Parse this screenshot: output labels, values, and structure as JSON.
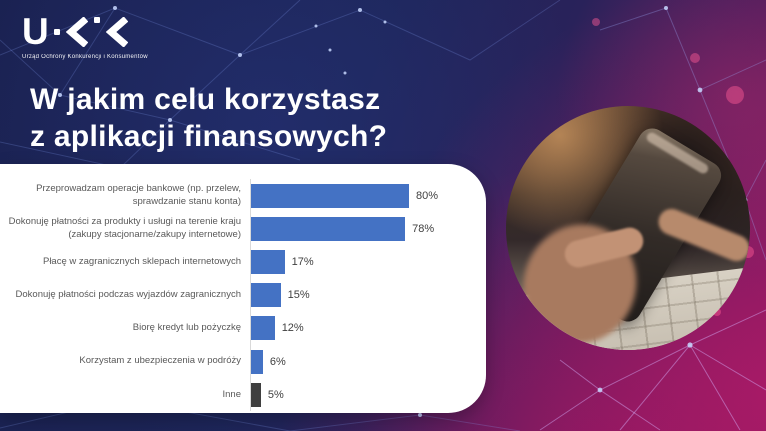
{
  "logo": {
    "letter": "U",
    "org_name": "Urząd Ochrony Konkurencji i Konsumentów"
  },
  "title": {
    "line1": "W jakim celu korzystasz",
    "line2": "z aplikacji finansowych?"
  },
  "chart_data": {
    "type": "bar",
    "orientation": "horizontal",
    "title": "W jakim celu korzystasz z aplikacji finansowych?",
    "categories": [
      "Przeprowadzam operacje bankowe (np. przelew, sprawdzanie stanu konta)",
      "Dokonuję płatności za produkty i usługi na terenie kraju (zakupy stacjonarne/zakupy internetowe)",
      "Płacę w zagranicznych sklepach internetowych",
      "Dokonuję płatności podczas wyjazdów zagranicznych",
      "Biorę kredyt lub pożyczkę",
      "Korzystam z ubezpieczenia w podróży",
      "Inne"
    ],
    "values": [
      80,
      78,
      17,
      15,
      12,
      6,
      5
    ],
    "value_labels": [
      "80%",
      "78%",
      "17%",
      "15%",
      "12%",
      "6%",
      "5%"
    ],
    "bar_colors": [
      "#4472C4",
      "#4472C4",
      "#4472C4",
      "#4472C4",
      "#4472C4",
      "#4472C4",
      "#3F3F3F"
    ],
    "xlim": [
      0,
      100
    ],
    "unit": "%",
    "grid": false,
    "legend": false,
    "value_label_position": "right-of-bar"
  },
  "colors": {
    "bar_blue": "#4472C4",
    "bar_dark": "#3F3F3F",
    "card_background": "#FFFFFF",
    "category_text": "#595959",
    "value_text": "#3F3F3F",
    "title_text": "#FFFFFF",
    "background_navy": "#1C2154",
    "background_magenta": "#8E2060"
  }
}
